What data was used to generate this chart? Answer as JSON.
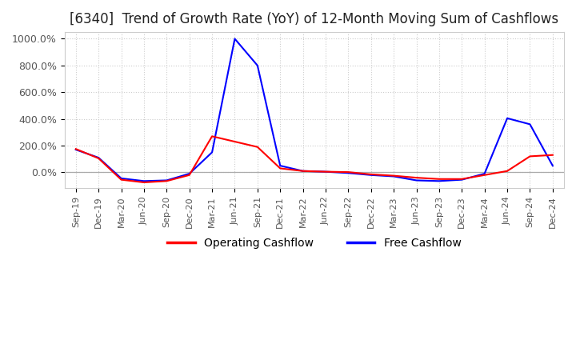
{
  "title": "[6340]  Trend of Growth Rate (YoY) of 12-Month Moving Sum of Cashflows",
  "title_fontsize": 12,
  "ylim": [
    -120,
    1050
  ],
  "yticks": [
    0,
    200,
    400,
    600,
    800,
    1000
  ],
  "ytick_labels": [
    "0.0%",
    "200.0%",
    "400.0%",
    "600.0%",
    "800.0%",
    "1000.0%"
  ],
  "background_color": "#ffffff",
  "grid_color": "#cccccc",
  "legend_items": [
    "Operating Cashflow",
    "Free Cashflow"
  ],
  "legend_colors": [
    "red",
    "blue"
  ],
  "x_labels": [
    "Sep-19",
    "Dec-19",
    "Mar-20",
    "Jun-20",
    "Sep-20",
    "Dec-20",
    "Mar-21",
    "Jun-21",
    "Sep-21",
    "Dec-21",
    "Mar-22",
    "Jun-22",
    "Sep-22",
    "Dec-22",
    "Mar-23",
    "Jun-23",
    "Sep-23",
    "Dec-23",
    "Mar-24",
    "Jun-24",
    "Sep-24",
    "Dec-24"
  ],
  "operating_cashflow": [
    175,
    105,
    -55,
    -75,
    -65,
    -20,
    270,
    230,
    190,
    30,
    10,
    5,
    2,
    -15,
    -25,
    -40,
    -50,
    -50,
    -20,
    10,
    120,
    130
  ],
  "free_cashflow": [
    170,
    110,
    -45,
    -65,
    -60,
    -10,
    150,
    1000,
    800,
    50,
    10,
    5,
    -5,
    -20,
    -30,
    -60,
    -65,
    -55,
    -10,
    405,
    360,
    50
  ]
}
